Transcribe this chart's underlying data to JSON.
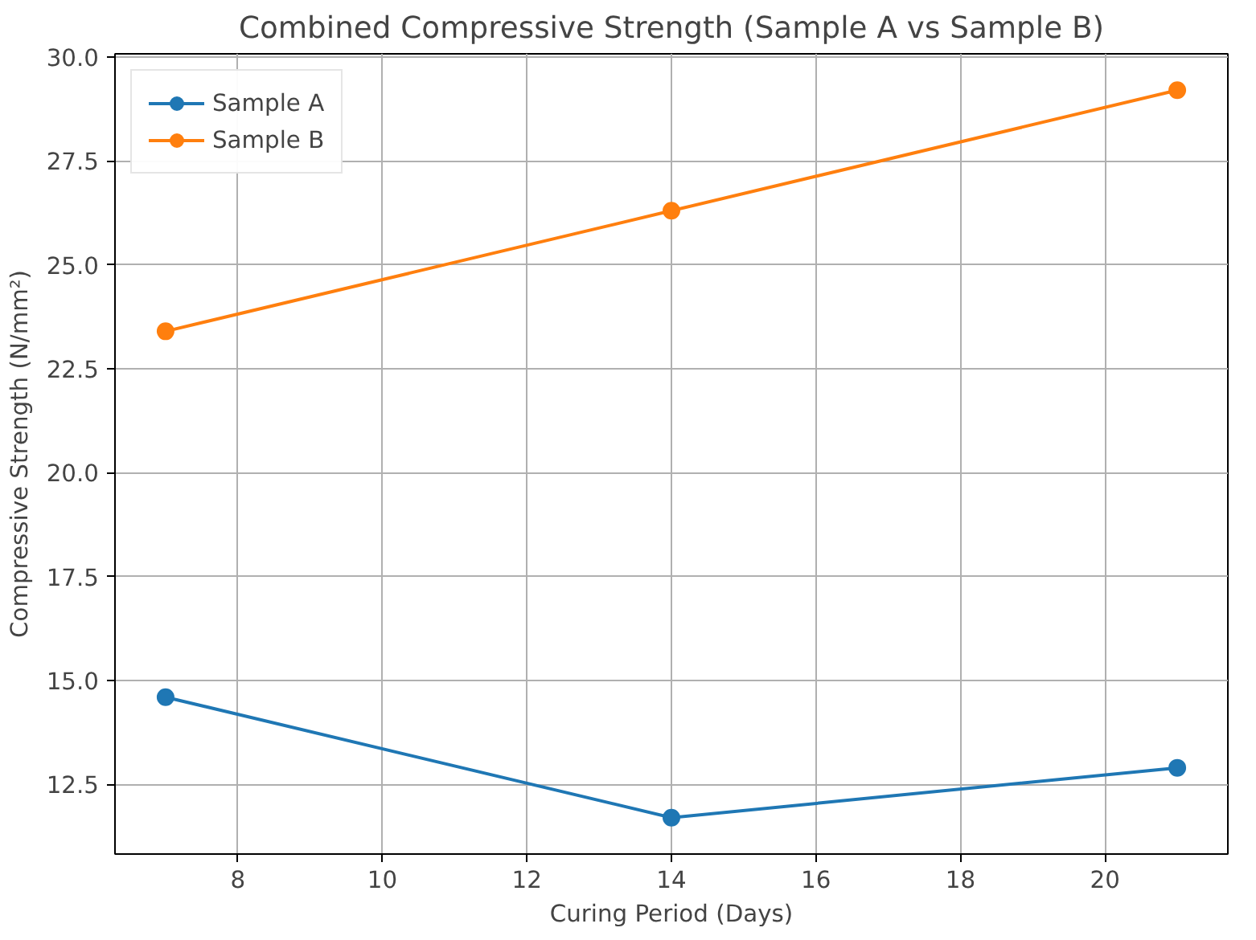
{
  "chart_data": {
    "type": "line",
    "title": "Combined Compressive Strength (Sample A vs Sample B)",
    "xlabel": "Curing Period (Days)",
    "ylabel": "Compressive Strength (N/mm²)",
    "x": [
      7,
      14,
      21
    ],
    "series": [
      {
        "name": "Sample A",
        "color": "#1f77b4",
        "values": [
          14.6,
          11.7,
          12.9
        ]
      },
      {
        "name": "Sample B",
        "color": "#ff7f0e",
        "values": [
          23.4,
          26.3,
          29.2
        ]
      }
    ],
    "xlim": [
      6.3,
      21.7
    ],
    "xticks": [
      8,
      10,
      12,
      14,
      16,
      18,
      20
    ],
    "ylim": [
      10.825,
      30.075
    ],
    "yticks": [
      {
        "value": 12.5,
        "label": "12.5"
      },
      {
        "value": 15,
        "label": "15.0"
      },
      {
        "value": 17.5,
        "label": "17.5"
      },
      {
        "value": 20,
        "label": "20.0"
      },
      {
        "value": 22.5,
        "label": "22.5"
      },
      {
        "value": 25,
        "label": "25.0"
      },
      {
        "value": 27.5,
        "label": "27.5"
      },
      {
        "value": 30,
        "label": "30.0"
      }
    ],
    "grid": true,
    "legend": "top left",
    "marker": "circle",
    "line_style": "solid"
  }
}
